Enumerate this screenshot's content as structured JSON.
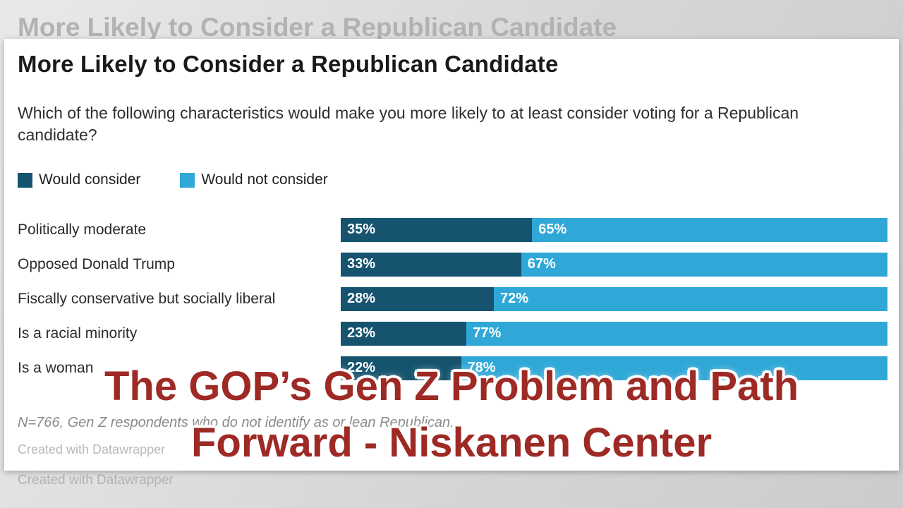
{
  "background": {
    "ghost_title": "More Likely to Consider a Republican Candidate",
    "ghost_credit": "Created with Datawrapper"
  },
  "overlay": {
    "line1": "The GOP’s Gen Z Problem and Path",
    "line2": "Forward - Niskanen Center",
    "color": "#9e2a25"
  },
  "chart_data": {
    "type": "bar",
    "orientation": "horizontal",
    "stacked": true,
    "title": "More Likely to Consider a Republican Candidate",
    "subtitle": "Which of the following characteristics would make you more likely to at least consider voting for a Republican candidate?",
    "categories": [
      "Politically moderate",
      "Opposed Donald Trump",
      "Fiscally conservative but socially liberal",
      "Is a racial minority",
      "Is a woman"
    ],
    "series": [
      {
        "name": "Would consider",
        "color": "#15536e",
        "values": [
          35,
          33,
          28,
          23,
          22
        ]
      },
      {
        "name": "Would not consider",
        "color": "#2fa8d7",
        "values": [
          65,
          67,
          72,
          77,
          78
        ]
      }
    ],
    "value_format": "percent",
    "xlim": [
      0,
      100
    ],
    "legend_position": "top",
    "grid": false,
    "footnote": "N=766, Gen Z respondents who do not identify as or lean Republican.",
    "credit": "Created with Datawrapper"
  }
}
